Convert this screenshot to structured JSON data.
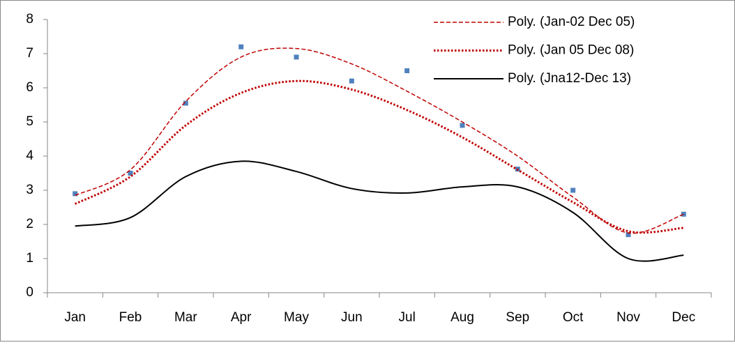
{
  "chart_data": {
    "type": "line",
    "categories": [
      "Jan",
      "Feb",
      "Mar",
      "Apr",
      "May",
      "Jun",
      "Jul",
      "Aug",
      "Sep",
      "Oct",
      "Nov",
      "Dec"
    ],
    "series": [
      {
        "color": "#4f81bd",
        "style": "marker",
        "values": [
          2.9,
          3.5,
          5.55,
          7.2,
          6.9,
          6.2,
          6.5,
          4.9,
          3.62,
          3.0,
          1.7,
          2.3
        ]
      },
      {
        "name": "Poly. (Jan-02 Dec 05)",
        "color": "#c00000",
        "style": "dashed",
        "values": [
          2.85,
          3.6,
          5.6,
          6.9,
          7.15,
          6.7,
          5.9,
          5.0,
          4.0,
          2.8,
          1.75,
          2.3
        ]
      },
      {
        "name": "Poly. (Jan 05 Dec 08)",
        "color": "#c00000",
        "style": "dotted",
        "values": [
          2.6,
          3.4,
          4.9,
          5.85,
          6.2,
          5.95,
          5.35,
          4.55,
          3.6,
          2.65,
          1.8,
          1.9
        ]
      },
      {
        "name": "Poly. (Jna12-Dec 13)",
        "color": "#000000",
        "style": "solid",
        "values": [
          1.95,
          2.2,
          3.4,
          3.85,
          3.55,
          3.05,
          2.92,
          3.1,
          3.1,
          2.35,
          1.0,
          1.1
        ]
      }
    ],
    "ylim": [
      0,
      8
    ],
    "yticks": [
      0,
      1,
      2,
      3,
      4,
      5,
      6,
      7,
      8
    ],
    "grid": false,
    "legend": "top-right"
  }
}
